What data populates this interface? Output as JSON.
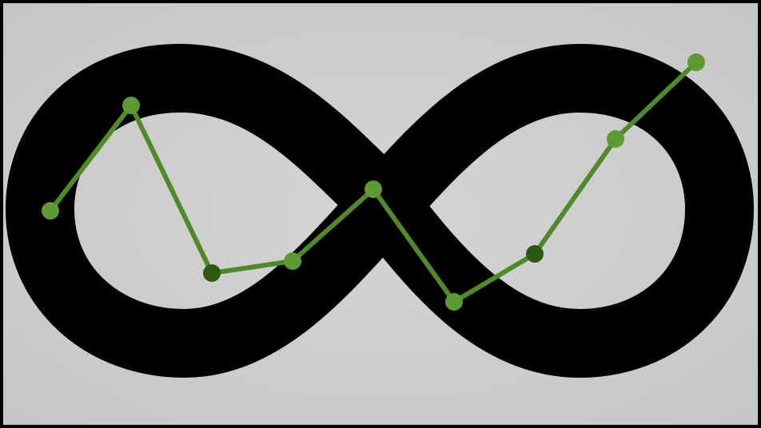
{
  "colors": {
    "frame": "#000000",
    "background": "#cdcdcd",
    "symbol": "#000000",
    "line": "#4f8a2a",
    "line_dark": "#2f5a14",
    "marker": "#5e9a33",
    "marker_dark": "#2d5a12"
  },
  "icon": {
    "name": "infinity-icon"
  },
  "chart_data": {
    "type": "line",
    "x": [
      1,
      2,
      3,
      4,
      5,
      6,
      7,
      8,
      9
    ],
    "values": [
      0.38,
      0.82,
      0.12,
      0.17,
      0.47,
      0.0,
      0.2,
      0.68,
      1.0
    ],
    "shade": [
      "light",
      "light",
      "dark",
      "light",
      "light",
      "light",
      "dark",
      "light",
      "light"
    ],
    "grid": false,
    "legend": "none"
  }
}
